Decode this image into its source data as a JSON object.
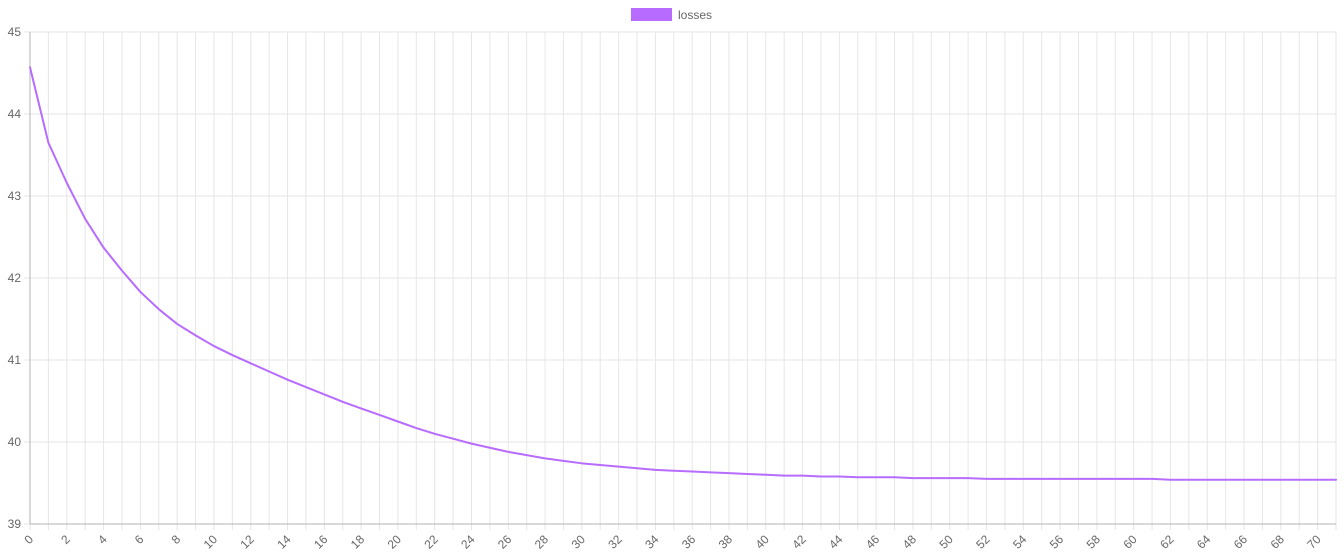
{
  "chart_data": {
    "type": "line",
    "title": "",
    "xlabel": "",
    "ylabel": "",
    "legend_position": "top-center",
    "grid": true,
    "xlim": [
      0,
      71
    ],
    "ylim": [
      39,
      45
    ],
    "y_ticks": [
      39,
      40,
      41,
      42,
      43,
      44,
      45
    ],
    "x_ticks": [
      0,
      2,
      4,
      6,
      8,
      10,
      12,
      14,
      16,
      18,
      20,
      22,
      24,
      26,
      28,
      30,
      32,
      34,
      36,
      38,
      40,
      42,
      44,
      46,
      48,
      50,
      52,
      54,
      56,
      58,
      60,
      62,
      64,
      66,
      68,
      70
    ],
    "series": [
      {
        "name": "losses",
        "color": "#b86cff",
        "x": [
          0,
          1,
          2,
          3,
          4,
          5,
          6,
          7,
          8,
          9,
          10,
          11,
          12,
          13,
          14,
          15,
          16,
          17,
          18,
          19,
          20,
          21,
          22,
          23,
          24,
          25,
          26,
          27,
          28,
          29,
          30,
          31,
          32,
          33,
          34,
          35,
          36,
          37,
          38,
          39,
          40,
          41,
          42,
          43,
          44,
          45,
          46,
          47,
          48,
          49,
          50,
          51,
          52,
          53,
          54,
          55,
          56,
          57,
          58,
          59,
          60,
          61,
          62,
          63,
          64,
          65,
          66,
          67,
          68,
          69,
          70,
          71
        ],
        "values": [
          44.57,
          43.65,
          43.16,
          42.72,
          42.37,
          42.09,
          41.83,
          41.62,
          41.44,
          41.3,
          41.17,
          41.06,
          40.96,
          40.86,
          40.76,
          40.67,
          40.58,
          40.49,
          40.41,
          40.33,
          40.25,
          40.17,
          40.1,
          40.04,
          39.98,
          39.93,
          39.88,
          39.84,
          39.8,
          39.77,
          39.74,
          39.72,
          39.7,
          39.68,
          39.66,
          39.65,
          39.64,
          39.63,
          39.62,
          39.61,
          39.6,
          39.59,
          39.59,
          39.58,
          39.58,
          39.57,
          39.57,
          39.57,
          39.56,
          39.56,
          39.56,
          39.56,
          39.55,
          39.55,
          39.55,
          39.55,
          39.55,
          39.55,
          39.55,
          39.55,
          39.55,
          39.55,
          39.54,
          39.54,
          39.54,
          39.54,
          39.54,
          39.54,
          39.54,
          39.54,
          39.54,
          39.54
        ]
      }
    ]
  }
}
